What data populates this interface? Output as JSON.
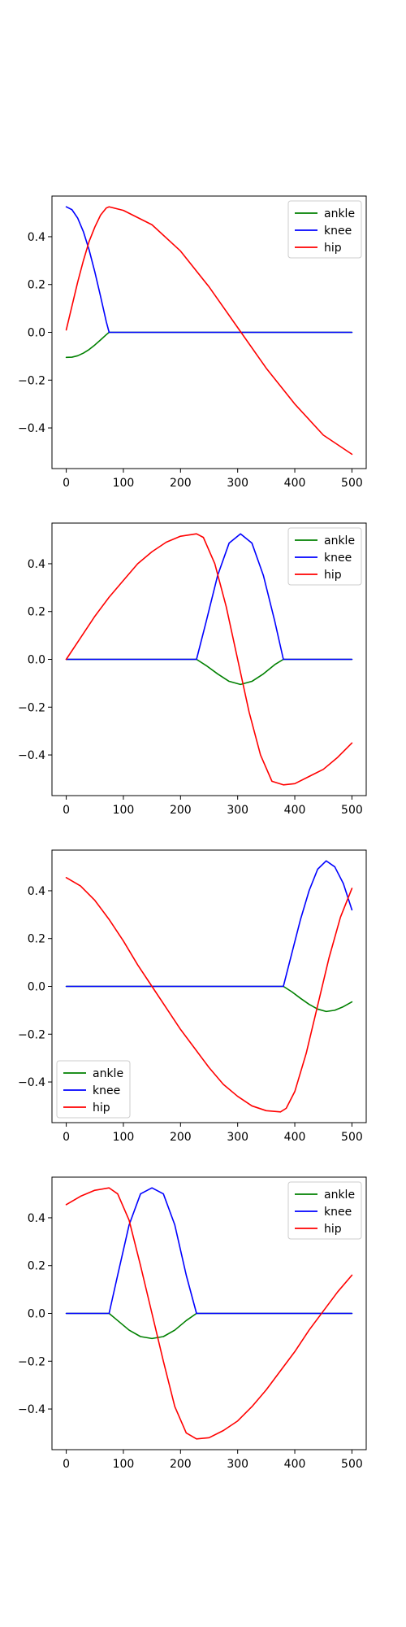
{
  "chart_data": [
    {
      "type": "line",
      "xlim": [
        -25,
        525
      ],
      "ylim": [
        -0.57,
        0.57
      ],
      "x_ticks": [
        0,
        100,
        200,
        300,
        400,
        500
      ],
      "y_ticks": [
        -0.4,
        -0.2,
        0.0,
        0.2,
        0.4
      ],
      "x_tick_labels": [
        "0",
        "100",
        "200",
        "300",
        "400",
        "500"
      ],
      "y_tick_labels": [
        "−0.4",
        "−0.2",
        "0.0",
        "0.2",
        "0.4"
      ],
      "legend": "top-right",
      "grid": false,
      "series": [
        {
          "name": "ankle",
          "color": "#008000",
          "x": [
            0,
            10,
            20,
            30,
            40,
            50,
            60,
            70,
            75,
            100,
            200,
            300,
            400,
            500
          ],
          "y": [
            -0.105,
            -0.104,
            -0.098,
            -0.087,
            -0.072,
            -0.053,
            -0.032,
            -0.01,
            0.0,
            0.0,
            0.0,
            0.0,
            0.0,
            0.0
          ]
        },
        {
          "name": "knee",
          "color": "#0000ff",
          "x": [
            0,
            10,
            20,
            30,
            40,
            50,
            60,
            70,
            75,
            100,
            200,
            300,
            400,
            500
          ],
          "y": [
            0.525,
            0.513,
            0.478,
            0.421,
            0.345,
            0.253,
            0.151,
            0.045,
            0.0,
            0.0,
            0.0,
            0.0,
            0.0,
            0.0
          ]
        },
        {
          "name": "hip",
          "color": "#ff0000",
          "x": [
            0,
            10,
            20,
            30,
            40,
            50,
            60,
            70,
            75,
            100,
            150,
            200,
            250,
            300,
            350,
            400,
            450,
            500
          ],
          "y": [
            0.01,
            0.11,
            0.21,
            0.3,
            0.38,
            0.44,
            0.49,
            0.52,
            0.525,
            0.51,
            0.45,
            0.34,
            0.19,
            0.02,
            -0.15,
            -0.3,
            -0.43,
            -0.51
          ]
        }
      ]
    },
    {
      "type": "line",
      "xlim": [
        -25,
        525
      ],
      "ylim": [
        -0.57,
        0.57
      ],
      "x_ticks": [
        0,
        100,
        200,
        300,
        400,
        500
      ],
      "y_ticks": [
        -0.4,
        -0.2,
        0.0,
        0.2,
        0.4
      ],
      "x_tick_labels": [
        "0",
        "100",
        "200",
        "300",
        "400",
        "500"
      ],
      "y_tick_labels": [
        "−0.4",
        "−0.2",
        "0.0",
        "0.2",
        "0.4"
      ],
      "legend": "top-right",
      "grid": false,
      "series": [
        {
          "name": "ankle",
          "color": "#008000",
          "x": [
            0,
            100,
            200,
            228,
            245,
            265,
            285,
            305,
            325,
            345,
            365,
            380,
            400,
            500
          ],
          "y": [
            0.0,
            0.0,
            0.0,
            0.0,
            -0.026,
            -0.061,
            -0.092,
            -0.105,
            -0.092,
            -0.061,
            -0.022,
            0.0,
            0.0,
            0.0
          ]
        },
        {
          "name": "knee",
          "color": "#0000ff",
          "x": [
            0,
            100,
            200,
            228,
            245,
            265,
            285,
            305,
            325,
            345,
            365,
            380,
            400,
            500
          ],
          "y": [
            0.0,
            0.0,
            0.0,
            0.0,
            0.159,
            0.351,
            0.486,
            0.525,
            0.486,
            0.351,
            0.159,
            0.0,
            0.0,
            0.0
          ]
        },
        {
          "name": "hip",
          "color": "#ff0000",
          "x": [
            0,
            25,
            50,
            75,
            100,
            125,
            150,
            175,
            200,
            228,
            240,
            260,
            280,
            300,
            320,
            340,
            360,
            380,
            400,
            425,
            450,
            475,
            500
          ],
          "y": [
            0.0,
            0.09,
            0.18,
            0.26,
            0.33,
            0.4,
            0.45,
            0.49,
            0.515,
            0.525,
            0.51,
            0.4,
            0.22,
            0.0,
            -0.22,
            -0.4,
            -0.51,
            -0.525,
            -0.52,
            -0.49,
            -0.46,
            -0.41,
            -0.35
          ]
        }
      ]
    },
    {
      "type": "line",
      "xlim": [
        -25,
        525
      ],
      "ylim": [
        -0.57,
        0.57
      ],
      "x_ticks": [
        0,
        100,
        200,
        300,
        400,
        500
      ],
      "y_ticks": [
        -0.4,
        -0.2,
        0.0,
        0.2,
        0.4
      ],
      "x_tick_labels": [
        "0",
        "100",
        "200",
        "300",
        "400",
        "500"
      ],
      "y_tick_labels": [
        "−0.4",
        "−0.2",
        "0.0",
        "0.2",
        "0.4"
      ],
      "legend": "lower-left",
      "grid": false,
      "series": [
        {
          "name": "ankle",
          "color": "#008000",
          "x": [
            0,
            100,
            200,
            300,
            380,
            395,
            410,
            425,
            440,
            455,
            470,
            485,
            500
          ],
          "y": [
            0.0,
            0.0,
            0.0,
            0.0,
            0.0,
            -0.023,
            -0.05,
            -0.075,
            -0.095,
            -0.105,
            -0.1,
            -0.085,
            -0.065
          ]
        },
        {
          "name": "knee",
          "color": "#0000ff",
          "x": [
            0,
            100,
            200,
            300,
            380,
            395,
            410,
            425,
            440,
            455,
            470,
            485,
            500
          ],
          "y": [
            0.0,
            0.0,
            0.0,
            0.0,
            0.0,
            0.14,
            0.28,
            0.4,
            0.49,
            0.525,
            0.5,
            0.43,
            0.32
          ]
        },
        {
          "name": "hip",
          "color": "#ff0000",
          "x": [
            0,
            25,
            50,
            75,
            100,
            125,
            150,
            175,
            200,
            225,
            250,
            275,
            300,
            325,
            350,
            375,
            385,
            400,
            420,
            440,
            460,
            480,
            500
          ],
          "y": [
            0.455,
            0.42,
            0.36,
            0.28,
            0.19,
            0.09,
            0.0,
            -0.09,
            -0.18,
            -0.26,
            -0.34,
            -0.41,
            -0.46,
            -0.5,
            -0.52,
            -0.525,
            -0.51,
            -0.44,
            -0.28,
            -0.08,
            0.12,
            0.29,
            0.41
          ]
        }
      ]
    },
    {
      "type": "line",
      "xlim": [
        -25,
        525
      ],
      "ylim": [
        -0.57,
        0.57
      ],
      "x_ticks": [
        0,
        100,
        200,
        300,
        400,
        500
      ],
      "y_ticks": [
        -0.4,
        -0.2,
        0.0,
        0.2,
        0.4
      ],
      "x_tick_labels": [
        "0",
        "100",
        "200",
        "300",
        "400",
        "500"
      ],
      "y_tick_labels": [
        "−0.4",
        "−0.2",
        "0.0",
        "0.2",
        "0.4"
      ],
      "legend": "top-right",
      "grid": false,
      "series": [
        {
          "name": "ankle",
          "color": "#008000",
          "x": [
            0,
            50,
            75,
            90,
            110,
            130,
            150,
            170,
            190,
            210,
            228,
            300,
            400,
            500
          ],
          "y": [
            0.0,
            0.0,
            0.0,
            -0.03,
            -0.07,
            -0.097,
            -0.105,
            -0.097,
            -0.07,
            -0.03,
            0.0,
            0.0,
            0.0,
            0.0
          ]
        },
        {
          "name": "knee",
          "color": "#0000ff",
          "x": [
            0,
            50,
            75,
            90,
            110,
            130,
            150,
            170,
            190,
            210,
            228,
            300,
            400,
            500
          ],
          "y": [
            0.0,
            0.0,
            0.0,
            0.16,
            0.37,
            0.5,
            0.525,
            0.5,
            0.37,
            0.16,
            0.0,
            0.0,
            0.0,
            0.0
          ]
        },
        {
          "name": "hip",
          "color": "#ff0000",
          "x": [
            0,
            25,
            50,
            75,
            90,
            110,
            130,
            150,
            170,
            190,
            210,
            228,
            250,
            275,
            300,
            325,
            350,
            375,
            400,
            425,
            450,
            475,
            500
          ],
          "y": [
            0.455,
            0.49,
            0.515,
            0.525,
            0.5,
            0.39,
            0.2,
            0.0,
            -0.2,
            -0.39,
            -0.5,
            -0.525,
            -0.52,
            -0.49,
            -0.45,
            -0.39,
            -0.32,
            -0.24,
            -0.16,
            -0.07,
            0.01,
            0.09,
            0.16
          ]
        }
      ]
    }
  ]
}
